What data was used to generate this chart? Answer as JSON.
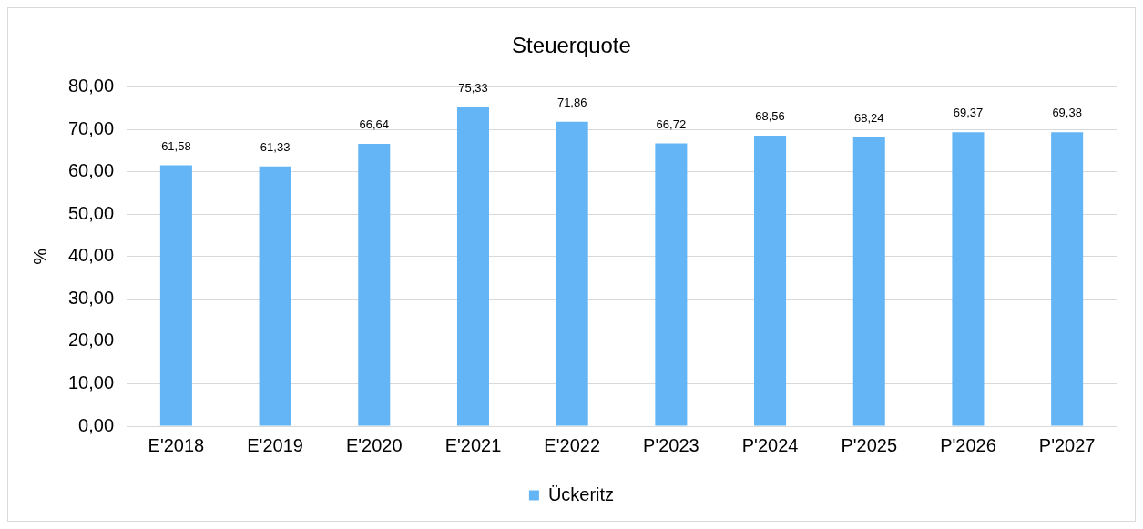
{
  "chart_data": {
    "type": "bar",
    "title": "Steuerquote",
    "ylabel": "%",
    "categories": [
      "E'2018",
      "E'2019",
      "E'2020",
      "E'2021",
      "E'2022",
      "P'2023",
      "P'2024",
      "P'2025",
      "P'2026",
      "P'2027"
    ],
    "series": [
      {
        "name": "Ückeritz",
        "color": "#63b5f6",
        "values": [
          61.58,
          61.33,
          66.64,
          75.33,
          71.86,
          66.72,
          68.56,
          68.24,
          69.37,
          69.38
        ],
        "value_labels": [
          "61,58",
          "61,33",
          "66,64",
          "75,33",
          "71,86",
          "66,72",
          "68,56",
          "68,24",
          "69,37",
          "69,38"
        ]
      }
    ],
    "ylim": [
      0,
      80
    ],
    "yticks": [
      {
        "value": 0,
        "label": "0,00"
      },
      {
        "value": 10,
        "label": "10,00"
      },
      {
        "value": 20,
        "label": "20,00"
      },
      {
        "value": 30,
        "label": "30,00"
      },
      {
        "value": 40,
        "label": "40,00"
      },
      {
        "value": 50,
        "label": "50,00"
      },
      {
        "value": 60,
        "label": "60,00"
      },
      {
        "value": 70,
        "label": "70,00"
      },
      {
        "value": 80,
        "label": "80,00"
      }
    ],
    "grid": "y",
    "legend": "bottom"
  }
}
